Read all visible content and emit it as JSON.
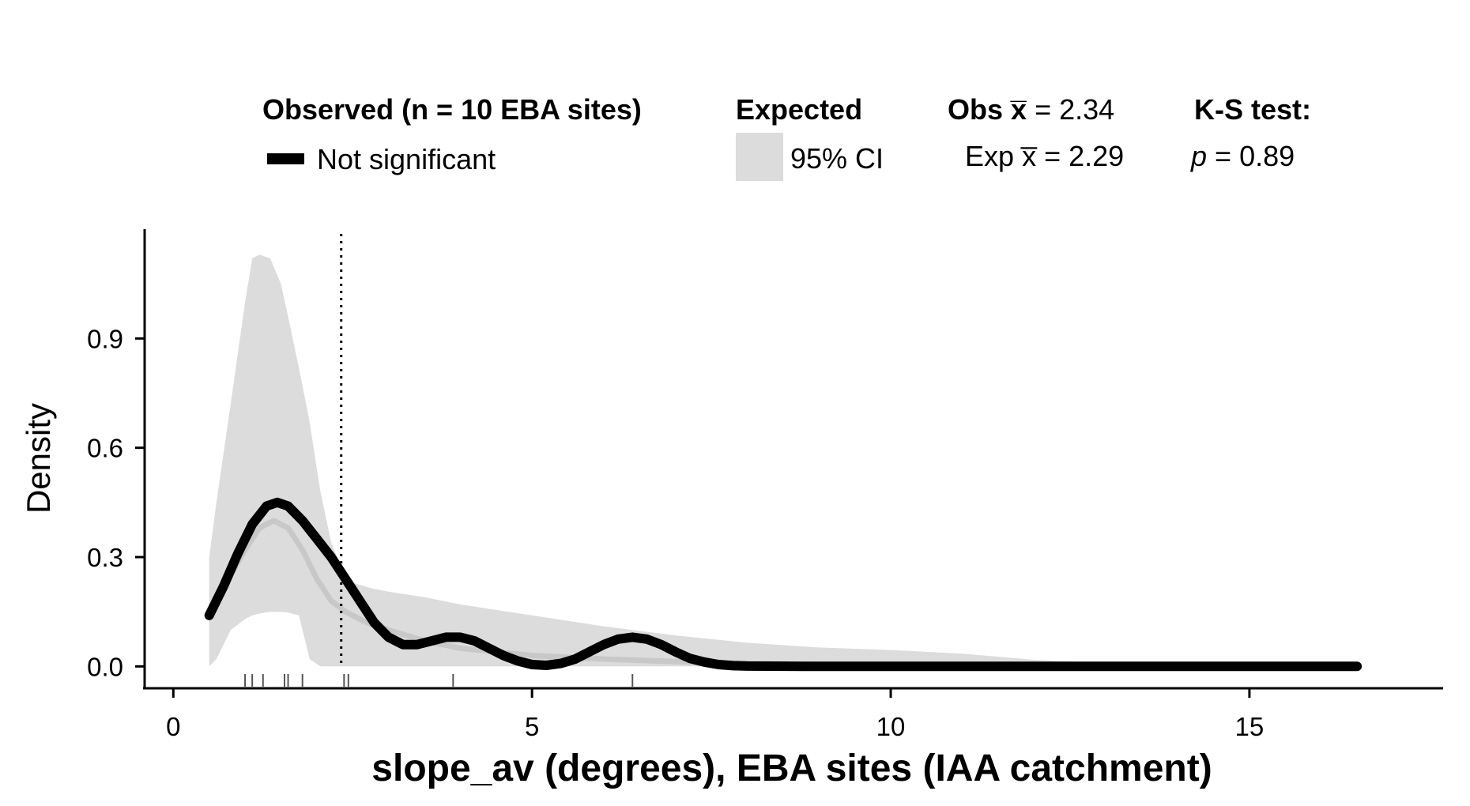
{
  "chart_data": {
    "type": "area",
    "xlabel": "slope_av (degrees), EBA sites (IAA catchment)",
    "ylabel": "Density",
    "xlim": [
      -0.4,
      17.7
    ],
    "ylim": [
      -0.06,
      1.2
    ],
    "xticks": [
      0,
      5,
      10,
      15
    ],
    "yticks": [
      0.0,
      0.3,
      0.6,
      0.9
    ],
    "xtick_labels": [
      "0",
      "5",
      "10",
      "15"
    ],
    "ytick_labels": [
      "0.0",
      "0.3",
      "0.6",
      "0.9"
    ],
    "grid": false,
    "legend_position": "top",
    "colors": {
      "observed": "#000000",
      "ci": "#dcdcdc",
      "expected_mean": "#c8c8c8",
      "rug": "#555555"
    },
    "observed_mean_x": 2.34,
    "series": [
      {
        "name": "Not significant",
        "role": "observed",
        "x": [
          0.5,
          0.7,
          0.9,
          1.1,
          1.3,
          1.45,
          1.6,
          1.8,
          2.0,
          2.2,
          2.4,
          2.6,
          2.8,
          3.0,
          3.2,
          3.4,
          3.6,
          3.8,
          4.0,
          4.2,
          4.4,
          4.6,
          4.8,
          5.0,
          5.2,
          5.4,
          5.6,
          5.8,
          6.0,
          6.2,
          6.4,
          6.6,
          6.8,
          7.0,
          7.2,
          7.4,
          7.6,
          7.8,
          8.0,
          9.0,
          10.0,
          12.0,
          14.0,
          16.5
        ],
        "y": [
          0.14,
          0.22,
          0.31,
          0.39,
          0.44,
          0.45,
          0.44,
          0.4,
          0.35,
          0.3,
          0.24,
          0.18,
          0.12,
          0.08,
          0.06,
          0.06,
          0.07,
          0.08,
          0.08,
          0.07,
          0.05,
          0.03,
          0.015,
          0.005,
          0.003,
          0.008,
          0.02,
          0.04,
          0.06,
          0.075,
          0.08,
          0.075,
          0.06,
          0.04,
          0.022,
          0.012,
          0.005,
          0.002,
          0.001,
          0.0,
          0.0,
          0.0,
          0.0,
          0.0
        ]
      },
      {
        "name": "95% CI",
        "role": "expected_ci",
        "x": [
          0.5,
          0.6,
          0.8,
          1.0,
          1.1,
          1.2,
          1.35,
          1.5,
          1.6,
          1.75,
          1.9,
          2.05,
          2.2,
          2.35,
          2.5,
          2.75,
          3.0,
          3.5,
          4.0,
          5.0,
          6.0,
          7.0,
          8.0,
          9.0,
          10.0,
          11.0,
          12.0,
          13.0,
          14.0,
          15.0,
          16.0
        ],
        "lower": [
          0.0,
          0.02,
          0.1,
          0.13,
          0.14,
          0.145,
          0.15,
          0.15,
          0.148,
          0.14,
          0.02,
          0.0,
          0.0,
          0.0,
          0.0,
          0.0,
          0.0,
          0.0,
          0.0,
          0.0,
          0.0,
          0.0,
          0.0,
          0.0,
          0.0,
          0.0,
          0.0,
          0.0,
          0.0,
          0.0,
          0.0
        ],
        "upper": [
          0.3,
          0.45,
          0.72,
          1.0,
          1.12,
          1.13,
          1.12,
          1.05,
          0.96,
          0.82,
          0.67,
          0.48,
          0.34,
          0.27,
          0.23,
          0.215,
          0.205,
          0.19,
          0.17,
          0.14,
          0.11,
          0.085,
          0.065,
          0.052,
          0.045,
          0.035,
          0.018,
          0.008,
          0.003,
          0.001,
          0.0
        ]
      },
      {
        "name": "Expected mean",
        "role": "expected_mean",
        "x": [
          0.5,
          0.8,
          1.0,
          1.2,
          1.4,
          1.6,
          1.8,
          2.0,
          2.2,
          2.4,
          2.7,
          3.0,
          3.5,
          4.0,
          5.0,
          6.0,
          7.0,
          8.0,
          9.0,
          10.0,
          11.0,
          12.0
        ],
        "y": [
          0.15,
          0.25,
          0.32,
          0.38,
          0.4,
          0.38,
          0.32,
          0.24,
          0.18,
          0.15,
          0.12,
          0.1,
          0.07,
          0.05,
          0.03,
          0.02,
          0.013,
          0.008,
          0.005,
          0.003,
          0.001,
          0.0
        ]
      }
    ],
    "rug": [
      1.0,
      1.1,
      1.25,
      1.55,
      1.6,
      1.8,
      2.38,
      2.44,
      3.9,
      6.4
    ]
  },
  "legend": {
    "observed_title": "Observed (n = 10 EBA sites)",
    "observed_item": "Not significant",
    "expected_title": "Expected",
    "expected_item": "95% CI",
    "obs_mean_label": "Obs",
    "obs_mean_symbol": "x̅",
    "obs_mean_value": "= 2.34",
    "exp_mean_label": "Exp",
    "exp_mean_symbol": "x̅",
    "exp_mean_value": "= 2.29",
    "ks_title": "K-S test:",
    "ks_p_symbol": "p",
    "ks_p_value": "= 0.89"
  }
}
